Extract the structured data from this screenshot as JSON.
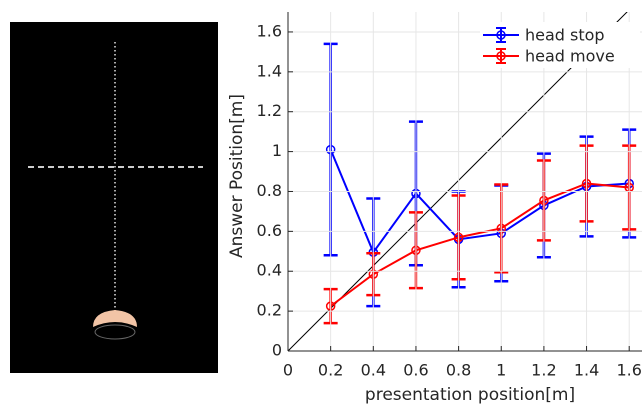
{
  "chart_data": {
    "type": "line",
    "x": [
      0.2,
      0.4,
      0.6,
      0.8,
      1,
      1.2,
      1.4,
      1.6
    ],
    "series": [
      {
        "name": "head stop",
        "color": "#0000ff",
        "values": [
          1.01,
          0.495,
          0.79,
          0.56,
          0.59,
          0.73,
          0.825,
          0.84
        ],
        "errors": [
          0.53,
          0.27,
          0.36,
          0.24,
          0.24,
          0.26,
          0.25,
          0.27
        ]
      },
      {
        "name": "head move",
        "color": "#ff0000",
        "values": [
          0.225,
          0.385,
          0.505,
          0.57,
          0.615,
          0.755,
          0.84,
          0.82
        ],
        "errors": [
          0.085,
          0.105,
          0.19,
          0.21,
          0.22,
          0.2,
          0.19,
          0.21
        ]
      }
    ],
    "xlabel": "presentation position[m]",
    "ylabel": "Answer Position[m]",
    "xlim": [
      0,
      1.66
    ],
    "ylim": [
      0,
      1.7
    ],
    "xticks": [
      0,
      0.2,
      0.4,
      0.6,
      0.8,
      1,
      1.2,
      1.4,
      1.6
    ],
    "yticks": [
      0,
      0.2,
      0.4,
      0.6,
      0.8,
      1,
      1.2,
      1.4,
      1.6
    ],
    "grid": true,
    "legend": "upper right"
  }
}
